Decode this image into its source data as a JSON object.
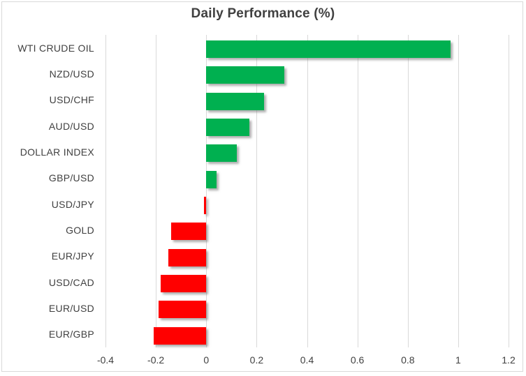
{
  "chart_data": {
    "type": "bar",
    "orientation": "horizontal",
    "title": "Daily Performance (%)",
    "categories": [
      "WTI CRUDE OIL",
      "NZD/USD",
      "USD/CHF",
      "AUD/USD",
      "DOLLAR INDEX",
      "GBP/USD",
      "USD/JPY",
      "GOLD",
      "EUR/JPY",
      "USD/CAD",
      "EUR/USD",
      "EUR/GBP"
    ],
    "values": [
      0.97,
      0.31,
      0.23,
      0.17,
      0.12,
      0.04,
      -0.01,
      -0.14,
      -0.15,
      -0.18,
      -0.19,
      -0.21
    ],
    "xlim": [
      -0.4,
      1.2
    ],
    "x_ticks": [
      -0.4,
      -0.2,
      0,
      0.2,
      0.4,
      0.6,
      0.8,
      1,
      1.2
    ],
    "x_tick_labels": [
      "-0.4",
      "-0.2",
      "0",
      "0.2",
      "0.4",
      "0.6",
      "0.8",
      "1",
      "1.2"
    ],
    "grid": "vertical",
    "legend": "none",
    "colors": {
      "positive": "#00B050",
      "negative": "#FF0000",
      "gridline": "#D9D9D9",
      "border": "#D9D9D9",
      "text": "#404040"
    }
  }
}
